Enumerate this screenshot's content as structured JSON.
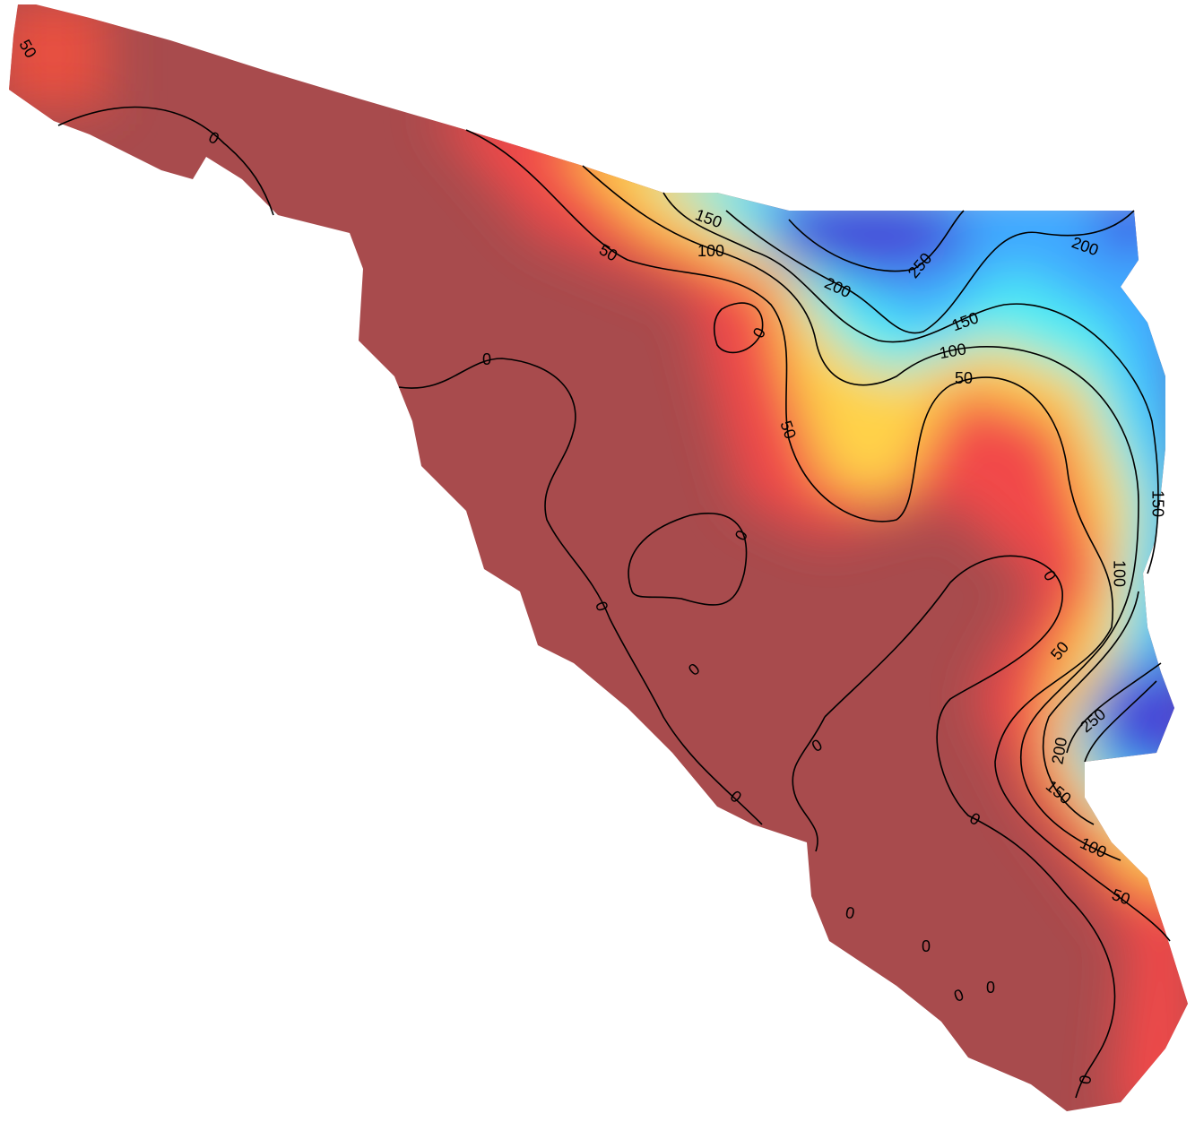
{
  "contours": [
    {
      "level": 0
    },
    {
      "level": 50
    },
    {
      "level": 100
    },
    {
      "level": 150
    },
    {
      "level": 200
    },
    {
      "level": 250
    }
  ]
}
